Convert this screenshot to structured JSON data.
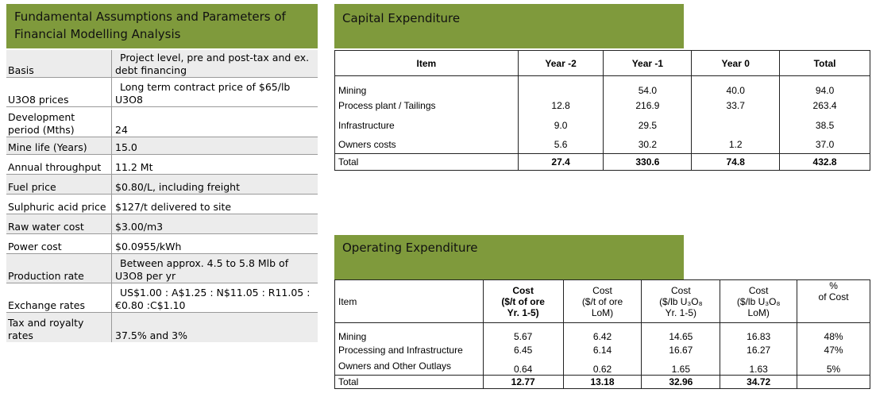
{
  "fundamental": {
    "title_line1": "Fundamental Assumptions and Parameters of",
    "title_line2": "Financial Modelling Analysis",
    "rows": [
      {
        "key": "Basis",
        "value_line1": "Project level, pre and post-tax and ex.",
        "value_line2": "debt financing"
      },
      {
        "key": "U3O8 prices",
        "value_line1": "Long term contract price of $65/lb",
        "value_line2": "U3O8"
      },
      {
        "key_line1": "Development",
        "key_line2": "period (Mths)",
        "value": "24"
      },
      {
        "key": "Mine life (Years)",
        "value": "15.0"
      },
      {
        "key": "Annual throughput",
        "value": "11.2 Mt"
      },
      {
        "key": "Fuel price",
        "value": "$0.80/L, including freight"
      },
      {
        "key": "Sulphuric acid price",
        "value": "$127/t delivered to site"
      },
      {
        "key": "Raw water cost",
        "value": "$3.00/m3"
      },
      {
        "key": "Power cost",
        "value": "$0.0955/kWh"
      },
      {
        "key": "Production rate",
        "value_line1": "Between approx. 4.5 to 5.8 Mlb of",
        "value_line2": "U3O8 per yr"
      },
      {
        "key": "Exchange rates",
        "value_line1": "US$1.00 : A$1.25 : N$11.05 : R11.05 :",
        "value_line2": "€0.80 :C$1.10"
      },
      {
        "key_line1": "Tax and royalty",
        "key_line2": "rates",
        "value": "37.5% and 3%"
      }
    ]
  },
  "capex": {
    "title": "Capital Expenditure",
    "headers": [
      "Item",
      "Year -2",
      "Year -1",
      "Year 0",
      "Total"
    ],
    "rows": [
      {
        "item": "Mining",
        "y2": "",
        "y1": "54.0",
        "y0": "40.0",
        "total": "94.0"
      },
      {
        "item": "Process plant / Tailings",
        "y2": "12.8",
        "y1": "216.9",
        "y0": "33.7",
        "total": "263.4"
      },
      {
        "item": "Infrastructure",
        "y2": "9.0",
        "y1": "29.5",
        "y0": "",
        "total": "38.5"
      },
      {
        "item": "Owners costs",
        "y2": "5.6",
        "y1": "30.2",
        "y0": "1.2",
        "total": "37.0"
      }
    ],
    "total": {
      "item": "Total",
      "y2": "27.4",
      "y1": "330.6",
      "y0": "74.8",
      "total": "432.8"
    }
  },
  "opex": {
    "title": "Operating Expenditure",
    "headers": {
      "item": "Item",
      "c1": [
        "Cost",
        "($/t of ore",
        "Yr. 1-5)"
      ],
      "c2": [
        "Cost",
        "($/t of ore",
        "LoM)"
      ],
      "c3": [
        "Cost",
        "($/lb U₃O₈",
        "Yr. 1-5)"
      ],
      "c4": [
        "Cost",
        "($/lb U₃O₈",
        "LoM)"
      ],
      "c5": [
        "%",
        "of Cost"
      ]
    },
    "rows": [
      {
        "item": "Mining",
        "c1": "5.67",
        "c2": "6.42",
        "c3": "14.65",
        "c4": "16.83",
        "c5": "48%"
      },
      {
        "item": "Processing and Infrastructure",
        "c1": "6.45",
        "c2": "6.14",
        "c3": "16.67",
        "c4": "16.27",
        "c5": "47%"
      },
      {
        "item": "Owners and Other Outlays",
        "c1": "0.64",
        "c2": "0.62",
        "c3": "1.65",
        "c4": "1.63",
        "c5": "5%"
      }
    ],
    "total": {
      "item": "Total",
      "c1": "12.77",
      "c2": "13.18",
      "c3": "32.96",
      "c4": "34.72",
      "c5": ""
    }
  }
}
